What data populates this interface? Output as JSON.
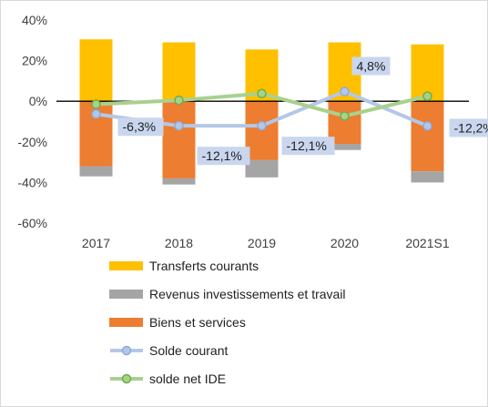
{
  "chart_data": {
    "type": "bar",
    "categories": [
      "2017",
      "2018",
      "2019",
      "2020",
      "2021S1"
    ],
    "y_ticks": [
      "40%",
      "20%",
      "0%",
      "-20%",
      "-40%",
      "-60%"
    ],
    "ylim": [
      -60,
      40
    ],
    "grid": false,
    "legend_position": "bottom",
    "series": [
      {
        "name": "Transferts courants",
        "kind": "stacked-bar",
        "color": "#FFC000",
        "values": [
          30.5,
          29,
          25.5,
          29,
          28
        ]
      },
      {
        "name": "Revenus investissements et travail",
        "kind": "stacked-bar",
        "color": "#A5A5A5",
        "values": [
          -5,
          -3,
          -8.5,
          -3,
          -5.5
        ]
      },
      {
        "name": "Biens et services",
        "kind": "stacked-bar",
        "color": "#ED7D31",
        "values": [
          -32,
          -38,
          -29,
          -21,
          -34.5
        ]
      },
      {
        "name": "Solde courant",
        "kind": "line",
        "color": "#B4C7E7",
        "values": [
          -6.3,
          -12.1,
          -12.1,
          4.8,
          -12.2
        ],
        "labels": [
          "-6,3%",
          "-12,1%",
          "-12,1%",
          "4,8%",
          "-12,2%"
        ]
      },
      {
        "name": "solde net IDE",
        "kind": "line",
        "color": "#A9D18E",
        "values": [
          -1.5,
          0.5,
          3.8,
          -7.3,
          2.5
        ]
      }
    ]
  }
}
